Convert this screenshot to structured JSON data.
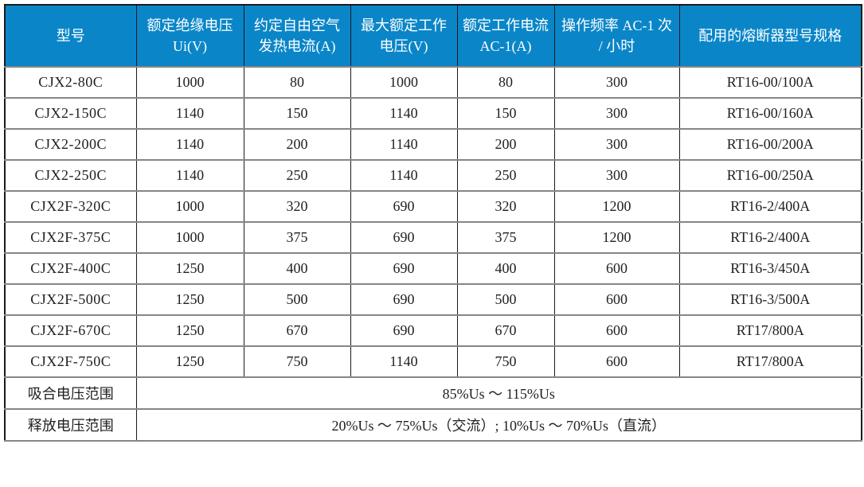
{
  "table": {
    "header": {
      "columns": [
        "型号",
        "额定绝缘电压 Ui(V)",
        "约定自由空气发热电流(A)",
        "最大额定工作电压(V)",
        "额定工作电流 AC-1(A)",
        "操作频率 AC-1 次 / 小时",
        "配用的熔断器型号规格"
      ]
    },
    "rows": [
      {
        "model": "CJX2-80C",
        "values": [
          "1000",
          "80",
          "1000",
          "80",
          "300",
          "RT16-00/100A"
        ]
      },
      {
        "model": "CJX2-150C",
        "values": [
          "1140",
          "150",
          "1140",
          "150",
          "300",
          "RT16-00/160A"
        ]
      },
      {
        "model": "CJX2-200C",
        "values": [
          "1140",
          "200",
          "1140",
          "200",
          "300",
          "RT16-00/200A"
        ]
      },
      {
        "model": "CJX2-250C",
        "values": [
          "1140",
          "250",
          "1140",
          "250",
          "300",
          "RT16-00/250A"
        ]
      },
      {
        "model": "CJX2F-320C",
        "values": [
          "1000",
          "320",
          "690",
          "320",
          "1200",
          "RT16-2/400A"
        ]
      },
      {
        "model": "CJX2F-375C",
        "values": [
          "1000",
          "375",
          "690",
          "375",
          "1200",
          "RT16-2/400A"
        ]
      },
      {
        "model": "CJX2F-400C",
        "values": [
          "1250",
          "400",
          "690",
          "400",
          "600",
          "RT16-3/450A"
        ]
      },
      {
        "model": "CJX2F-500C",
        "values": [
          "1250",
          "500",
          "690",
          "500",
          "600",
          "RT16-3/500A"
        ]
      },
      {
        "model": "CJX2F-670C",
        "values": [
          "1250",
          "670",
          "690",
          "670",
          "600",
          "RT17/800A"
        ]
      },
      {
        "model": "CJX2F-750C",
        "values": [
          "1250",
          "750",
          "1140",
          "750",
          "600",
          "RT17/800A"
        ]
      }
    ],
    "footer_rows": [
      {
        "label": "吸合电压范围",
        "value": "85%Us ～ 115%Us"
      },
      {
        "label": "释放电压范围",
        "value": "20%Us ～ 75%Us（交流）; 10%Us ～ 70%Us（直流）"
      }
    ],
    "colors": {
      "header_bg": "#0a86c8",
      "header_text": "#ffffff",
      "vertical_border": "#1a1a1a",
      "horizontal_border": "#868686",
      "body_text": "#1f1f1f"
    }
  }
}
